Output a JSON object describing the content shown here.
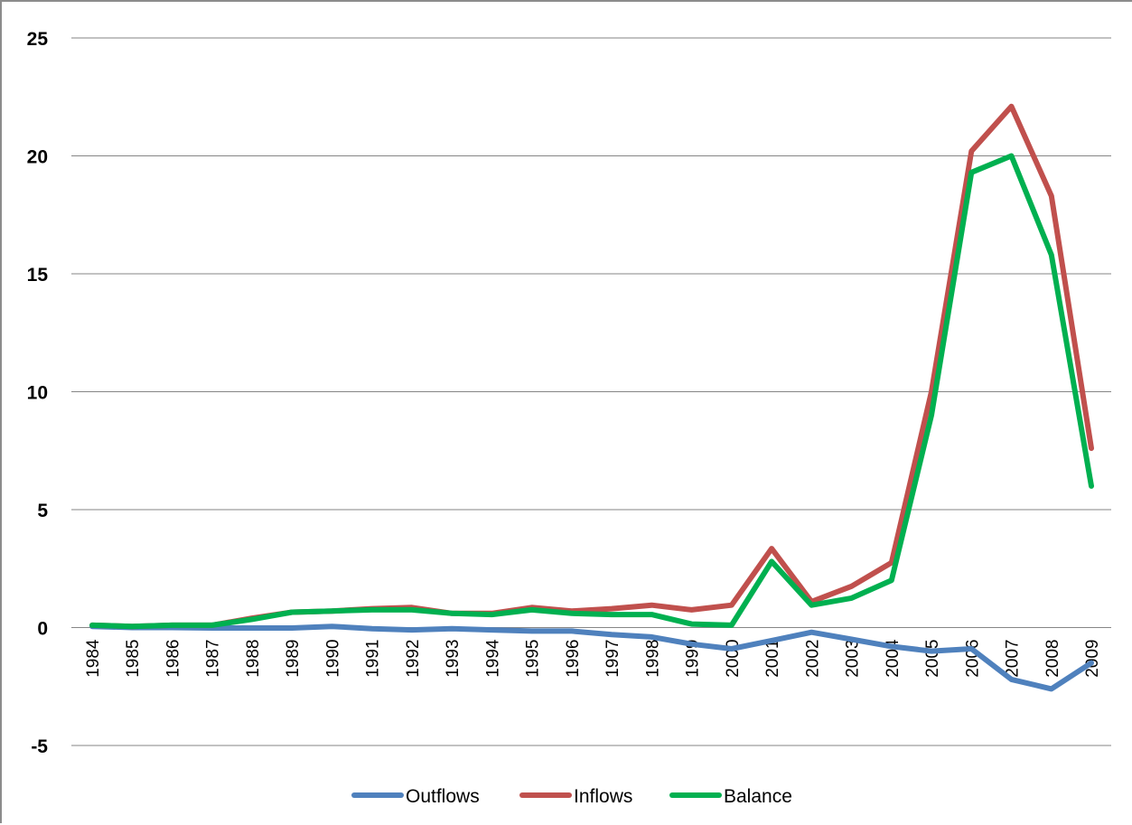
{
  "chart_data": {
    "type": "line",
    "title": "",
    "xlabel": "",
    "ylabel": "",
    "ylim": [
      -5,
      25
    ],
    "yticks": [
      "25",
      "20",
      "15",
      "10",
      "5",
      "0",
      "-5"
    ],
    "ytick_values": [
      25,
      20,
      15,
      10,
      5,
      0,
      -5
    ],
    "grid": true,
    "legend_position": "bottom",
    "x": [
      "1984",
      "1985",
      "1986",
      "1987",
      "1988",
      "1989",
      "1990",
      "1991",
      "1992",
      "1993",
      "1994",
      "1995",
      "1996",
      "1997",
      "1998",
      "1999",
      "2000",
      "2001",
      "2002",
      "2003",
      "2004",
      "2005",
      "2006",
      "2007",
      "2008",
      "2009"
    ],
    "series": [
      {
        "name": "Outflows",
        "color": "#4f81bd",
        "values": [
          0.05,
          0.0,
          0.0,
          -0.02,
          -0.02,
          -0.02,
          0.05,
          -0.05,
          -0.1,
          -0.05,
          -0.1,
          -0.15,
          -0.15,
          -0.3,
          -0.4,
          -0.7,
          -0.9,
          -0.55,
          -0.2,
          -0.5,
          -0.8,
          -1.0,
          -0.9,
          -2.2,
          -2.6,
          -1.5
        ]
      },
      {
        "name": "Inflows",
        "color": "#c0504d",
        "values": [
          0.1,
          0.05,
          0.1,
          0.1,
          0.4,
          0.65,
          0.7,
          0.8,
          0.85,
          0.6,
          0.6,
          0.85,
          0.7,
          0.8,
          0.95,
          0.75,
          0.95,
          3.35,
          1.1,
          1.75,
          2.75,
          10.0,
          20.2,
          22.1,
          18.3,
          7.6
        ]
      },
      {
        "name": "Balance",
        "color": "#00b050",
        "values": [
          0.1,
          0.05,
          0.1,
          0.1,
          0.35,
          0.65,
          0.7,
          0.75,
          0.75,
          0.6,
          0.55,
          0.75,
          0.6,
          0.55,
          0.55,
          0.15,
          0.1,
          2.8,
          0.95,
          1.25,
          2.0,
          9.0,
          19.3,
          20.0,
          15.8,
          6.0
        ]
      }
    ]
  }
}
